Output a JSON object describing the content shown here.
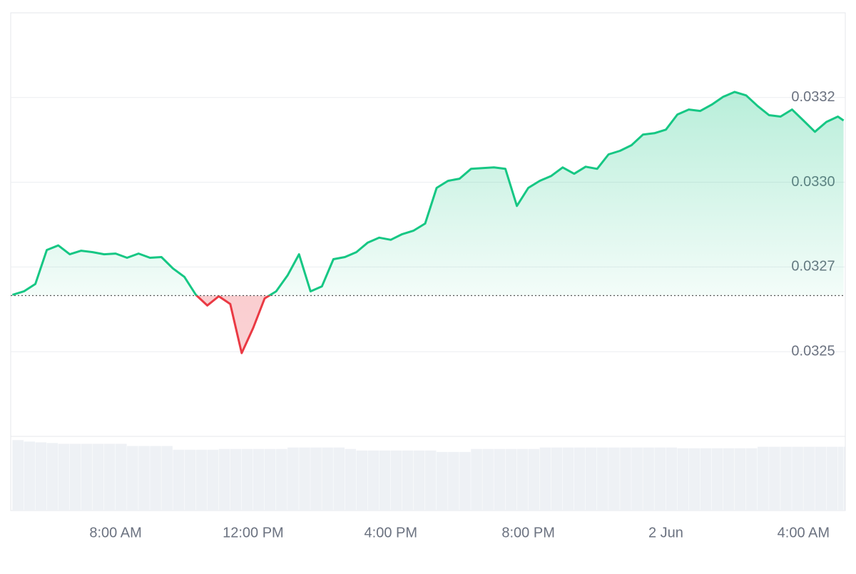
{
  "chart_data": {
    "type": "line",
    "x": [
      "1 Jun 05:00",
      "1 Jun 05:20",
      "1 Jun 05:40",
      "1 Jun 06:00",
      "1 Jun 06:20",
      "1 Jun 06:40",
      "1 Jun 07:00",
      "1 Jun 07:20",
      "1 Jun 07:40",
      "1 Jun 08:00",
      "1 Jun 08:20",
      "1 Jun 08:40",
      "1 Jun 09:00",
      "1 Jun 09:20",
      "1 Jun 09:40",
      "1 Jun 10:00",
      "1 Jun 10:20",
      "1 Jun 10:40",
      "1 Jun 11:00",
      "1 Jun 11:20",
      "1 Jun 11:40",
      "1 Jun 12:00",
      "1 Jun 12:20",
      "1 Jun 12:40",
      "1 Jun 13:00",
      "1 Jun 13:20",
      "1 Jun 13:40",
      "1 Jun 14:00",
      "1 Jun 14:20",
      "1 Jun 14:40",
      "1 Jun 15:00",
      "1 Jun 15:20",
      "1 Jun 15:40",
      "1 Jun 16:00",
      "1 Jun 16:20",
      "1 Jun 16:40",
      "1 Jun 17:00",
      "1 Jun 17:20",
      "1 Jun 17:40",
      "1 Jun 18:00",
      "1 Jun 18:20",
      "1 Jun 18:40",
      "1 Jun 19:00",
      "1 Jun 19:20",
      "1 Jun 19:40",
      "1 Jun 20:00",
      "1 Jun 20:20",
      "1 Jun 20:40",
      "1 Jun 21:00",
      "1 Jun 21:20",
      "1 Jun 21:40",
      "1 Jun 22:00",
      "1 Jun 22:20",
      "1 Jun 22:40",
      "1 Jun 23:00",
      "1 Jun 23:20",
      "1 Jun 23:40",
      "2 Jun 00:00",
      "2 Jun 00:20",
      "2 Jun 00:40",
      "2 Jun 01:00",
      "2 Jun 01:20",
      "2 Jun 01:40",
      "2 Jun 02:00",
      "2 Jun 02:20",
      "2 Jun 02:40",
      "2 Jun 03:00",
      "2 Jun 03:20",
      "2 Jun 03:40",
      "2 Jun 04:00",
      "2 Jun 04:20",
      "2 Jun 04:40",
      "2 Jun 05:00",
      "2 Jun 05:10"
    ],
    "series": [
      {
        "color": "#16c784",
        "down_color": "#ea3943",
        "values": [
          0.032631,
          0.032641,
          0.032662,
          0.032758,
          0.032771,
          0.032746,
          0.032756,
          0.032752,
          0.032746,
          0.032748,
          0.032736,
          0.032748,
          0.032736,
          0.032738,
          0.032706,
          0.032682,
          0.032631,
          0.032601,
          0.032627,
          0.032605,
          0.032466,
          0.032537,
          0.032621,
          0.032641,
          0.032686,
          0.032746,
          0.032641,
          0.032655,
          0.032732,
          0.032738,
          0.032752,
          0.032779,
          0.032793,
          0.032787,
          0.032803,
          0.032813,
          0.032833,
          0.032934,
          0.032954,
          0.03296,
          0.032988,
          0.03299,
          0.032992,
          0.032988,
          0.032883,
          0.032934,
          0.032954,
          0.032968,
          0.032992,
          0.032974,
          0.032994,
          0.032988,
          0.033029,
          0.033039,
          0.033055,
          0.033085,
          0.033089,
          0.033099,
          0.033142,
          0.033156,
          0.033152,
          0.03317,
          0.033192,
          0.033206,
          0.033196,
          0.033166,
          0.03314,
          0.033136,
          0.033156,
          0.033125,
          0.033093,
          0.033121,
          0.033136,
          0.033125
        ]
      }
    ],
    "baseline": 0.032629,
    "volume": {
      "color": "#eef1f5",
      "lim": [
        0,
        100
      ],
      "values": [
        95,
        93,
        92,
        91,
        90,
        90,
        90,
        90,
        90,
        90,
        87,
        87,
        87,
        87,
        82,
        82,
        82,
        82,
        83,
        83,
        83,
        83,
        83,
        83,
        85,
        85,
        85,
        85,
        85,
        83,
        81,
        81,
        81,
        81,
        81,
        81,
        81,
        79,
        79,
        79,
        83,
        83,
        83,
        83,
        83,
        83,
        85,
        85,
        85,
        85,
        85,
        85,
        85,
        85,
        85,
        85,
        85,
        85,
        84,
        84,
        84,
        84,
        84,
        84,
        84,
        86,
        86,
        86,
        86,
        86,
        86,
        86,
        86,
        86
      ]
    },
    "xlim": [
      "1 Jun 04:57",
      "2 Jun 05:13"
    ],
    "xticks": [
      {
        "value": "1 Jun 08:00",
        "label": "8:00 AM"
      },
      {
        "value": "1 Jun 12:00",
        "label": "12:00 PM"
      },
      {
        "value": "1 Jun 16:00",
        "label": "4:00 PM"
      },
      {
        "value": "1 Jun 20:00",
        "label": "8:00 PM"
      },
      {
        "value": "2 Jun 00:00",
        "label": "2 Jun"
      },
      {
        "value": "2 Jun 04:00",
        "label": "4:00 AM"
      }
    ],
    "ylim": [
      0.03223,
      0.03343
    ],
    "yticks": [
      {
        "value": 0.03247,
        "label": "0.0325"
      },
      {
        "value": 0.03271,
        "label": "0.0327"
      },
      {
        "value": 0.03295,
        "label": "0.0330"
      },
      {
        "value": 0.03319,
        "label": "0.0332"
      }
    ],
    "grid": true
  }
}
